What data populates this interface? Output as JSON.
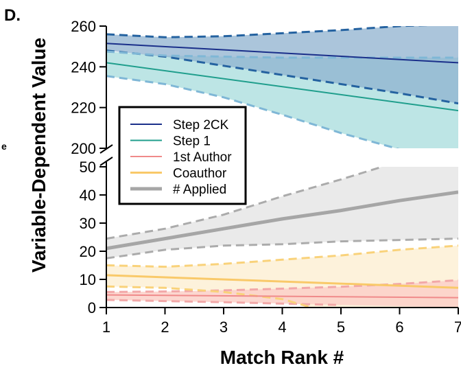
{
  "panel_label": "D.",
  "stray_mark": "e",
  "chart_data": {
    "type": "line",
    "title": "",
    "xlabel": "Match Rank #",
    "ylabel": "Variable-Dependent Value",
    "x": [
      1,
      2,
      3,
      4,
      5,
      6,
      7
    ],
    "xlim": [
      1,
      7
    ],
    "x_ticks": [
      "1",
      "2",
      "3",
      "4",
      "5",
      "6",
      "7"
    ],
    "axis_break": true,
    "upper_ylim": [
      200,
      260
    ],
    "upper_y_ticks": [
      "200",
      "220",
      "240",
      "260"
    ],
    "lower_ylim": [
      0,
      50
    ],
    "lower_y_ticks": [
      "0",
      "10",
      "20",
      "30",
      "40",
      "50"
    ],
    "grid": false,
    "legend_position": "upper-left",
    "series": [
      {
        "name": "Step 2CK",
        "color": "#1a2f8a",
        "band_color": "#8fb2cf",
        "band_dash_color": "#2462a0",
        "panel": "upper",
        "x": [
          1,
          7
        ],
        "values": [
          251.5,
          242
        ],
        "ci_lower_x": [
          1,
          2,
          3,
          4,
          5,
          6,
          7
        ],
        "ci_lower": [
          248,
          245,
          240.5,
          236,
          231.5,
          227,
          222
        ],
        "ci_upper_x": [
          1,
          2,
          3,
          4,
          5,
          6,
          7
        ],
        "ci_upper": [
          256,
          254.5,
          255,
          256.5,
          258,
          260,
          261
        ]
      },
      {
        "name": "Step 1",
        "color": "#1f9e8c",
        "band_color": "#a7dcdc",
        "band_dash_color": "#7fb7d6",
        "panel": "upper",
        "x": [
          1,
          7
        ],
        "values": [
          242,
          218.5
        ],
        "ci_lower_x": [
          1,
          2,
          3,
          4,
          5,
          6
        ],
        "ci_lower": [
          235.5,
          231.5,
          225,
          216.5,
          207.5,
          199.5
        ],
        "ci_upper_x": [
          1,
          2,
          3,
          4,
          5,
          6,
          7
        ],
        "ci_upper": [
          247.5,
          245.5,
          245,
          244.5,
          244.5,
          244.5,
          244.5
        ]
      },
      {
        "name": "1st Author",
        "color": "#f08a8a",
        "band_color": "#fbd0c8",
        "band_dash_color": "#f2a8a8",
        "panel": "lower",
        "x": [
          1,
          7
        ],
        "values": [
          4.5,
          3.5
        ],
        "ci_lower_x": [
          1,
          2,
          3,
          4,
          5
        ],
        "ci_lower": [
          2.7,
          2.3,
          1.9,
          1.4,
          0.9
        ],
        "ci_upper_x": [
          1,
          2,
          3,
          4,
          5,
          6,
          7
        ],
        "ci_upper": [
          5.5,
          5.7,
          6.1,
          6.7,
          7.4,
          8.4,
          9.7
        ]
      },
      {
        "name": "Coauthor",
        "color": "#f9c969",
        "band_color": "#fdf0d5",
        "band_dash_color": "#f9d27a",
        "panel": "lower",
        "x": [
          1,
          7
        ],
        "values": [
          11.5,
          7
        ],
        "ci_lower_x": [
          1,
          2,
          3,
          4,
          4.5
        ],
        "ci_lower": [
          7.5,
          7,
          5.5,
          3,
          0
        ],
        "ci_upper_x": [
          1,
          2,
          3,
          4,
          5,
          6,
          7
        ],
        "ci_upper": [
          15,
          14.5,
          15.5,
          17,
          18.5,
          20.5,
          22
        ]
      },
      {
        "name": "# Applied",
        "color": "#a6a6a6",
        "band_color": "#e6e6e6",
        "band_dash_color": "#ababab",
        "panel": "lower",
        "x": [
          1,
          2,
          3,
          4,
          5,
          6,
          7
        ],
        "values": [
          21,
          24.5,
          28,
          31.5,
          34.5,
          38,
          41
        ],
        "ci_lower_x": [
          1,
          2,
          3,
          4,
          5,
          6,
          7
        ],
        "ci_lower": [
          17.5,
          20.5,
          22,
          22.5,
          23.5,
          24,
          24.5
        ],
        "ci_upper_x": [
          1,
          2,
          3,
          4,
          5,
          5.7
        ],
        "ci_upper": [
          24.5,
          28,
          33,
          39.5,
          45.5,
          50
        ]
      }
    ]
  }
}
